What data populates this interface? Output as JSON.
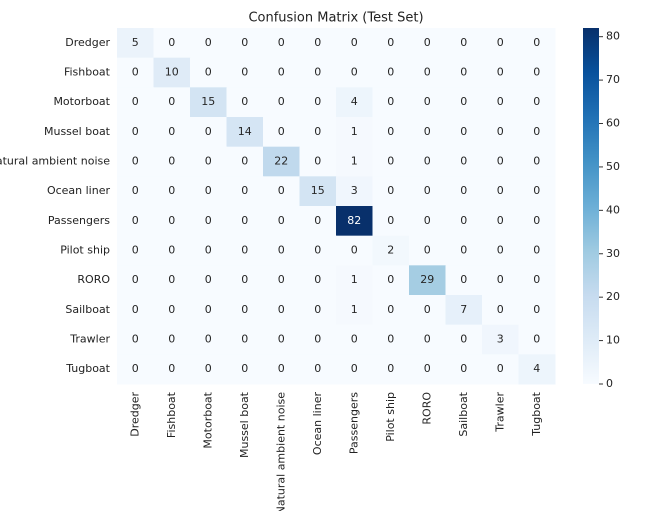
{
  "chart_data": {
    "type": "heatmap",
    "title": "Confusion Matrix (Test Set)",
    "categories": [
      "Dredger",
      "Fishboat",
      "Motorboat",
      "Mussel boat",
      "Natural ambient noise",
      "Ocean liner",
      "Passengers",
      "Pilot ship",
      "RORO",
      "Sailboat",
      "Trawler",
      "Tugboat"
    ],
    "values": [
      [
        5,
        0,
        0,
        0,
        0,
        0,
        0,
        0,
        0,
        0,
        0,
        0
      ],
      [
        0,
        10,
        0,
        0,
        0,
        0,
        0,
        0,
        0,
        0,
        0,
        0
      ],
      [
        0,
        0,
        15,
        0,
        0,
        0,
        4,
        0,
        0,
        0,
        0,
        0
      ],
      [
        0,
        0,
        0,
        14,
        0,
        0,
        1,
        0,
        0,
        0,
        0,
        0
      ],
      [
        0,
        0,
        0,
        0,
        22,
        0,
        1,
        0,
        0,
        0,
        0,
        0
      ],
      [
        0,
        0,
        0,
        0,
        0,
        15,
        3,
        0,
        0,
        0,
        0,
        0
      ],
      [
        0,
        0,
        0,
        0,
        0,
        0,
        82,
        0,
        0,
        0,
        0,
        0
      ],
      [
        0,
        0,
        0,
        0,
        0,
        0,
        0,
        2,
        0,
        0,
        0,
        0
      ],
      [
        0,
        0,
        0,
        0,
        0,
        0,
        1,
        0,
        29,
        0,
        0,
        0
      ],
      [
        0,
        0,
        0,
        0,
        0,
        0,
        1,
        0,
        0,
        7,
        0,
        0
      ],
      [
        0,
        0,
        0,
        0,
        0,
        0,
        0,
        0,
        0,
        0,
        3,
        0
      ],
      [
        0,
        0,
        0,
        0,
        0,
        0,
        0,
        0,
        0,
        0,
        0,
        4
      ]
    ],
    "colormap": "Blues",
    "clim": [
      0,
      82
    ],
    "cticks": [
      0,
      10,
      20,
      30,
      40,
      50,
      60,
      70,
      80
    ]
  }
}
